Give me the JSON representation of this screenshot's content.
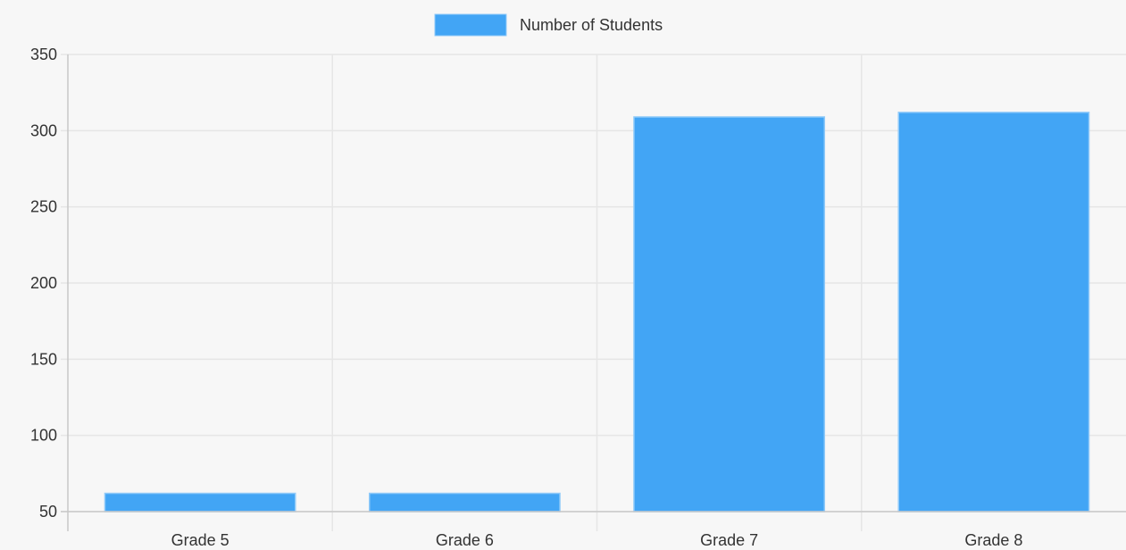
{
  "chart_data": {
    "type": "bar",
    "categories": [
      "Grade 5",
      "Grade 6",
      "Grade 7",
      "Grade 8"
    ],
    "series": [
      {
        "name": "Number of Students",
        "values": [
          62,
          62,
          309,
          312
        ]
      }
    ],
    "ylim": [
      50,
      350
    ],
    "yticks": [
      50,
      100,
      150,
      200,
      250,
      300,
      350
    ],
    "legend": "top-center",
    "grid": true,
    "colors": {
      "bar_fill": "#42a5f5",
      "bar_stroke": "#90caf9",
      "grid": "#e6e6e6",
      "axis": "#c8c8c8",
      "background": "#f7f7f7"
    }
  }
}
